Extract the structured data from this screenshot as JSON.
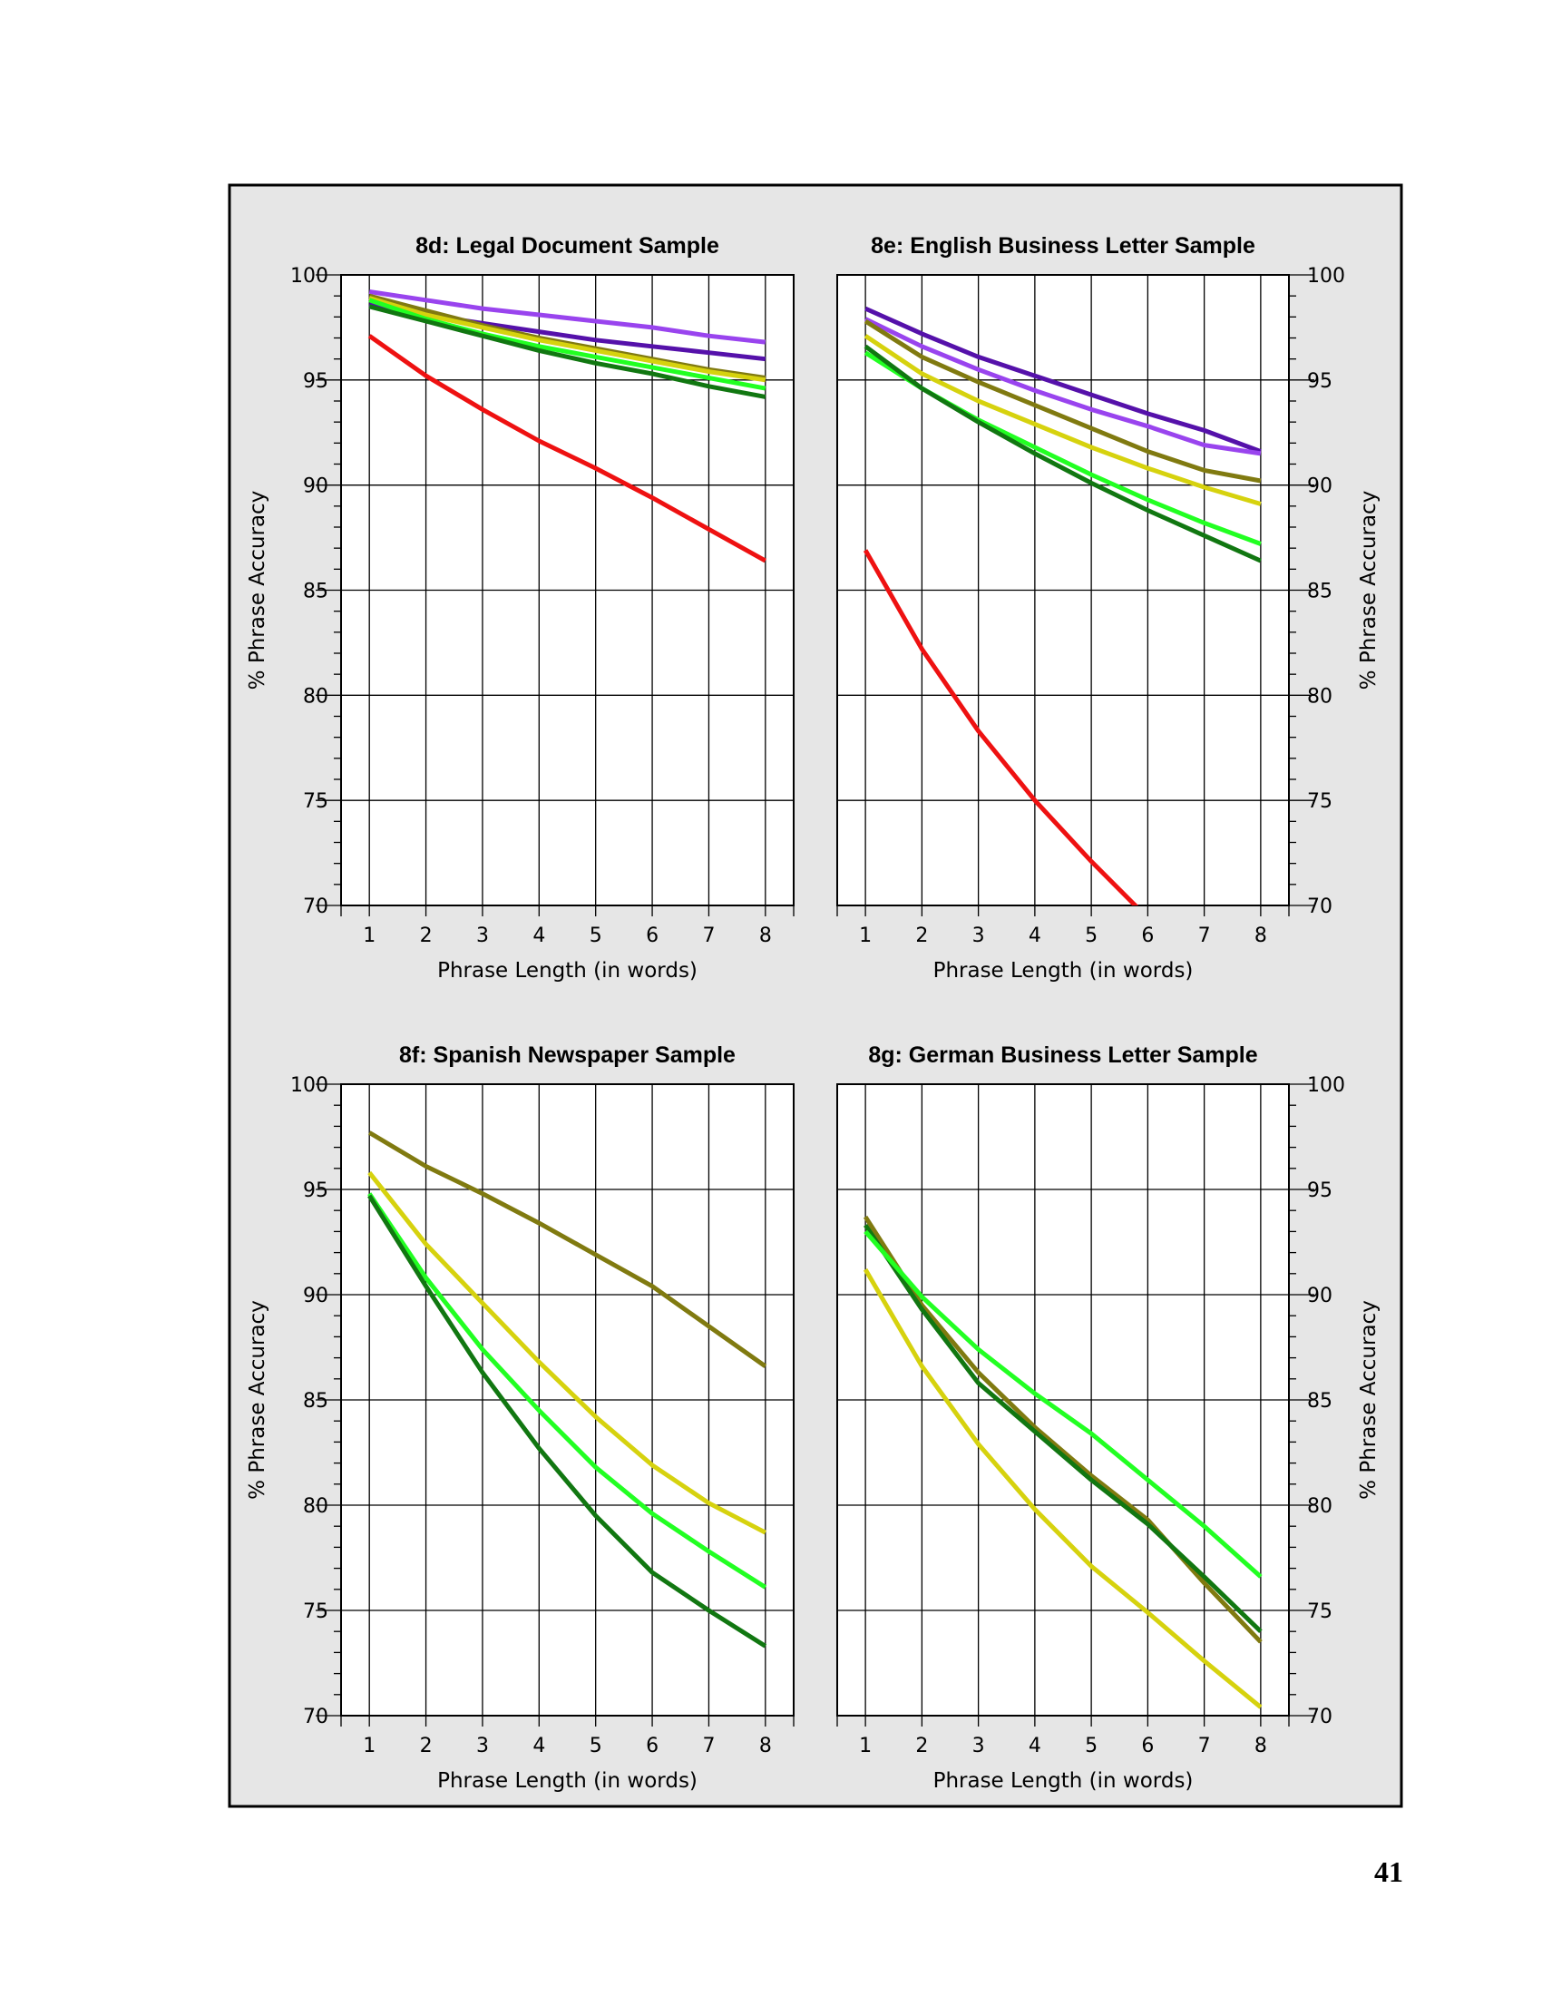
{
  "page": {
    "number": "41"
  },
  "colors": {
    "background": "#e6e6e6",
    "red": "#ee1111",
    "purple": "#9944ee",
    "indigo": "#5511aa",
    "olive": "#807a10",
    "yellow": "#d6d20e",
    "lime": "#22ff22",
    "green": "#117711"
  },
  "chart_data": [
    {
      "id": "8d",
      "type": "line",
      "title": "8d:  Legal Document Sample",
      "xlabel": "Phrase Length (in words)",
      "ylabel": "% Phrase Accuracy",
      "x": [
        1,
        2,
        3,
        4,
        5,
        6,
        7,
        8
      ],
      "xlim": [
        0.5,
        8.5
      ],
      "ylim": [
        70,
        100
      ],
      "yticks": [
        70,
        75,
        80,
        85,
        90,
        95,
        100
      ],
      "y_axis_side": "left",
      "grid": true,
      "series": [
        {
          "color": "red",
          "values": [
            97.1,
            95.2,
            93.6,
            92.1,
            90.8,
            89.4,
            87.9,
            86.4
          ]
        },
        {
          "color": "purple",
          "values": [
            99.2,
            98.8,
            98.4,
            98.1,
            97.8,
            97.5,
            97.1,
            96.8
          ]
        },
        {
          "color": "indigo",
          "values": [
            98.6,
            98.1,
            97.7,
            97.3,
            96.9,
            96.6,
            96.3,
            96.0
          ]
        },
        {
          "color": "olive",
          "values": [
            99.0,
            98.3,
            97.6,
            97.0,
            96.5,
            96.0,
            95.5,
            95.1
          ]
        },
        {
          "color": "yellow",
          "values": [
            98.9,
            98.1,
            97.5,
            96.9,
            96.4,
            95.9,
            95.4,
            95.0
          ]
        },
        {
          "color": "lime",
          "values": [
            98.8,
            97.9,
            97.2,
            96.6,
            96.1,
            95.6,
            95.1,
            94.6
          ]
        },
        {
          "color": "green",
          "values": [
            98.5,
            97.8,
            97.1,
            96.4,
            95.8,
            95.3,
            94.7,
            94.2
          ]
        }
      ]
    },
    {
      "id": "8e",
      "type": "line",
      "title": "8e:  English Business Letter Sample",
      "xlabel": "Phrase Length (in words)",
      "ylabel": "% Phrase Accuracy",
      "x": [
        1,
        2,
        3,
        4,
        5,
        6,
        7,
        8
      ],
      "xlim": [
        0.5,
        8.5
      ],
      "ylim": [
        70,
        100
      ],
      "yticks": [
        70,
        75,
        80,
        85,
        90,
        95,
        100
      ],
      "y_axis_side": "right",
      "grid": true,
      "series": [
        {
          "color": "red",
          "values": [
            86.9,
            82.2,
            78.3,
            75.0,
            72.1,
            69.4,
            null,
            null
          ]
        },
        {
          "color": "indigo",
          "values": [
            98.4,
            97.2,
            96.1,
            95.2,
            94.3,
            93.4,
            92.6,
            91.6
          ]
        },
        {
          "color": "purple",
          "values": [
            97.9,
            96.6,
            95.5,
            94.5,
            93.6,
            92.8,
            91.9,
            91.5
          ]
        },
        {
          "color": "olive",
          "values": [
            97.8,
            96.1,
            94.9,
            93.8,
            92.7,
            91.6,
            90.7,
            90.2
          ]
        },
        {
          "color": "yellow",
          "values": [
            97.1,
            95.3,
            94.0,
            92.9,
            91.8,
            90.8,
            89.9,
            89.1
          ]
        },
        {
          "color": "lime",
          "values": [
            96.3,
            94.6,
            93.1,
            91.8,
            90.5,
            89.3,
            88.2,
            87.2
          ]
        },
        {
          "color": "green",
          "values": [
            96.6,
            94.6,
            93.0,
            91.5,
            90.1,
            88.8,
            87.6,
            86.4
          ]
        }
      ]
    },
    {
      "id": "8f",
      "type": "line",
      "title": "8f:  Spanish Newspaper Sample",
      "xlabel": "Phrase Length (in words)",
      "ylabel": "% Phrase Accuracy",
      "x": [
        1,
        2,
        3,
        4,
        5,
        6,
        7,
        8
      ],
      "xlim": [
        0.5,
        8.5
      ],
      "ylim": [
        70,
        100
      ],
      "yticks": [
        70,
        75,
        80,
        85,
        90,
        95,
        100
      ],
      "y_axis_side": "left",
      "grid": true,
      "series": [
        {
          "color": "olive",
          "values": [
            97.7,
            96.1,
            94.8,
            93.4,
            91.9,
            90.4,
            88.5,
            86.6
          ]
        },
        {
          "color": "yellow",
          "values": [
            95.8,
            92.4,
            89.6,
            86.8,
            84.2,
            81.9,
            80.1,
            78.7
          ]
        },
        {
          "color": "lime",
          "values": [
            94.8,
            90.8,
            87.4,
            84.5,
            81.8,
            79.6,
            77.8,
            76.1
          ]
        },
        {
          "color": "green",
          "values": [
            94.7,
            90.4,
            86.3,
            82.7,
            79.5,
            76.8,
            75.0,
            73.3
          ]
        }
      ]
    },
    {
      "id": "8g",
      "type": "line",
      "title": "8g:  German Business Letter Sample",
      "xlabel": "Phrase Length (in words)",
      "ylabel": "% Phrase Accuracy",
      "x": [
        1,
        2,
        3,
        4,
        5,
        6,
        7,
        8
      ],
      "xlim": [
        0.5,
        8.5
      ],
      "ylim": [
        70,
        100
      ],
      "yticks": [
        70,
        75,
        80,
        85,
        90,
        95,
        100
      ],
      "y_axis_side": "right",
      "grid": true,
      "series": [
        {
          "color": "olive",
          "values": [
            93.7,
            89.5,
            86.3,
            83.7,
            81.4,
            79.3,
            76.3,
            73.5
          ]
        },
        {
          "color": "green",
          "values": [
            93.3,
            89.3,
            85.8,
            83.5,
            81.2,
            79.1,
            76.6,
            74.0
          ]
        },
        {
          "color": "lime",
          "values": [
            93.0,
            89.9,
            87.4,
            85.3,
            83.4,
            81.2,
            79.0,
            76.6
          ]
        },
        {
          "color": "yellow",
          "values": [
            91.2,
            86.6,
            82.9,
            79.8,
            77.1,
            74.9,
            72.6,
            70.4
          ]
        }
      ]
    }
  ]
}
